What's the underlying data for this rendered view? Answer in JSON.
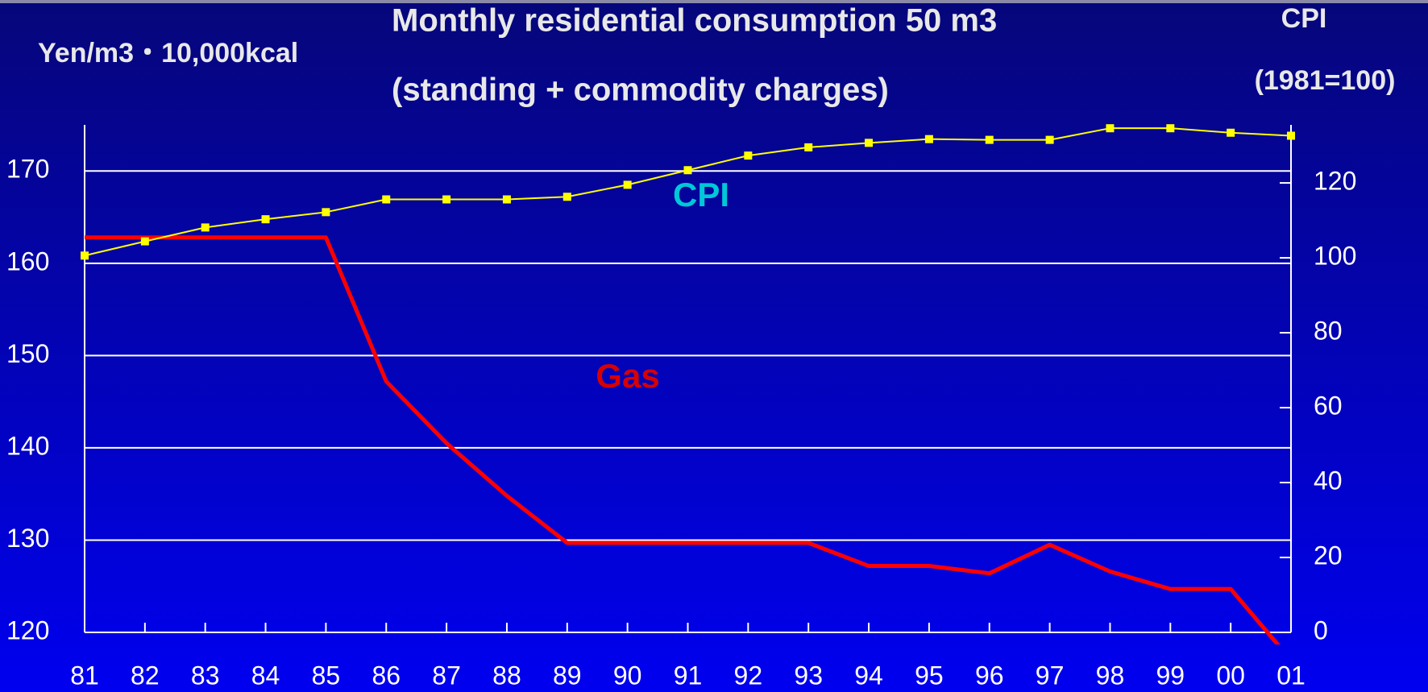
{
  "chart_data": {
    "type": "line",
    "title": "Monthly residential consumption  50 m3",
    "subtitle": "(standing + commodity charges)",
    "y_label": "Yen/m3・10,000kcal",
    "y2_label": "CPI",
    "y2_label_note": "(1981=100)",
    "annotations": [
      {
        "text": "CPI",
        "color": "#00c8d8"
      },
      {
        "text": "Gas",
        "color": "#d80000"
      }
    ],
    "categories": [
      "81",
      "82",
      "83",
      "84",
      "85",
      "86",
      "87",
      "88",
      "89",
      "90",
      "91",
      "92",
      "93",
      "94",
      "95",
      "96",
      "97",
      "98",
      "99",
      "00",
      "01"
    ],
    "series": [
      {
        "name": "Gas",
        "color": "#ff0000",
        "axis": "y",
        "values": [
          162.8,
          162.8,
          162.8,
          162.8,
          162.8,
          147.2,
          140.5,
          134.8,
          129.7,
          129.7,
          129.7,
          129.7,
          129.7,
          127.2,
          127.2,
          126.4,
          129.5,
          126.6,
          124.7,
          124.7,
          117
        ]
      },
      {
        "name": "CPI",
        "color": "#ffff00",
        "axis": "y2",
        "values": [
          100.6,
          104.4,
          108.1,
          110.3,
          112.2,
          115.6,
          115.6,
          115.6,
          116.3,
          119.5,
          123.4,
          127.3,
          129.5,
          130.7,
          131.7,
          131.5,
          131.5,
          134.6,
          134.6,
          133.4,
          132.6
        ]
      }
    ],
    "ylim": [
      120,
      175
    ],
    "yticks": [
      120,
      130,
      140,
      150,
      160,
      170
    ],
    "y2lim": [
      0,
      135.5
    ],
    "y2ticks": [
      0,
      20,
      40,
      60,
      80,
      100,
      120
    ],
    "grid": true
  }
}
